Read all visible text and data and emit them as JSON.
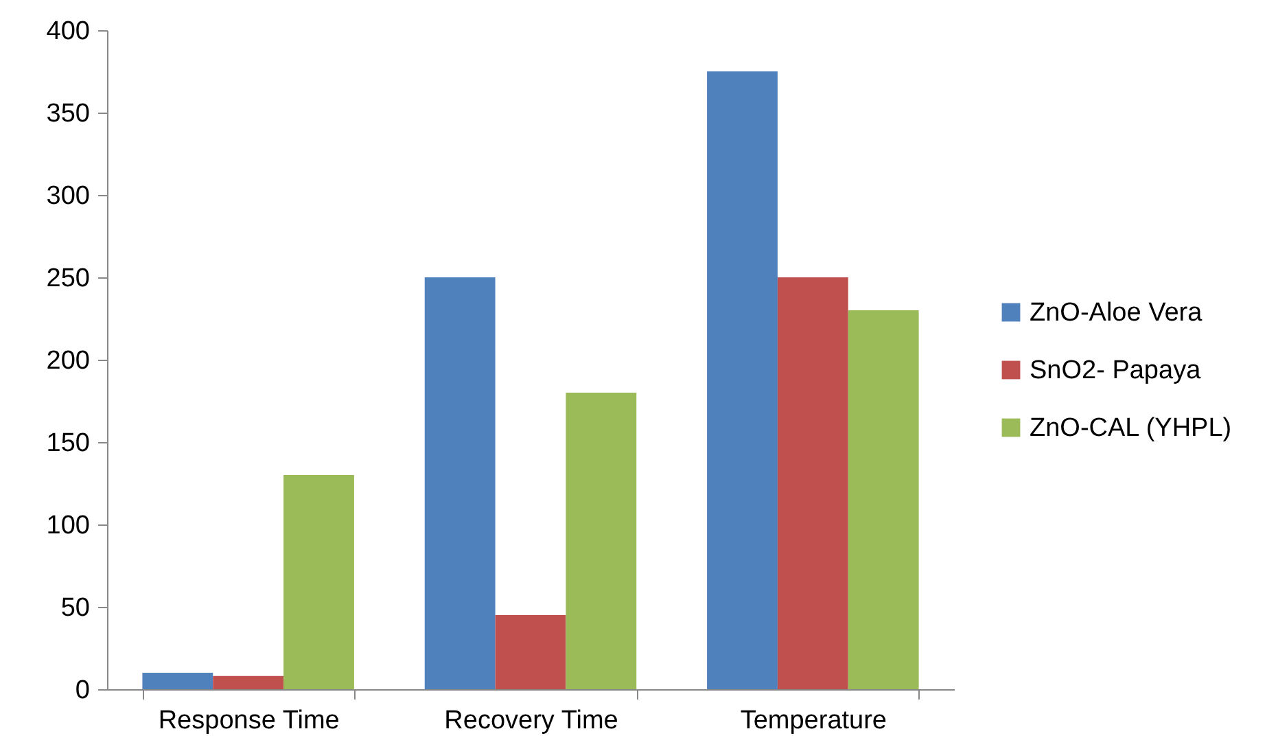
{
  "chart_data": {
    "type": "bar",
    "categories": [
      "Response Time",
      "Recovery Time",
      "Temperature"
    ],
    "series": [
      {
        "name": "ZnO-Aloe Vera",
        "color": "#4f81bd",
        "values": [
          10,
          250,
          375
        ]
      },
      {
        "name": "SnO2- Papaya",
        "color": "#c0504d",
        "values": [
          8,
          45,
          250
        ]
      },
      {
        "name": "ZnO-CAL (YHPL)",
        "color": "#9bbb59",
        "values": [
          130,
          180,
          230
        ]
      }
    ],
    "ylim": [
      0,
      400
    ],
    "yticks": [
      0,
      50,
      100,
      150,
      200,
      250,
      300,
      350,
      400
    ],
    "grid": false,
    "legend": "right"
  }
}
